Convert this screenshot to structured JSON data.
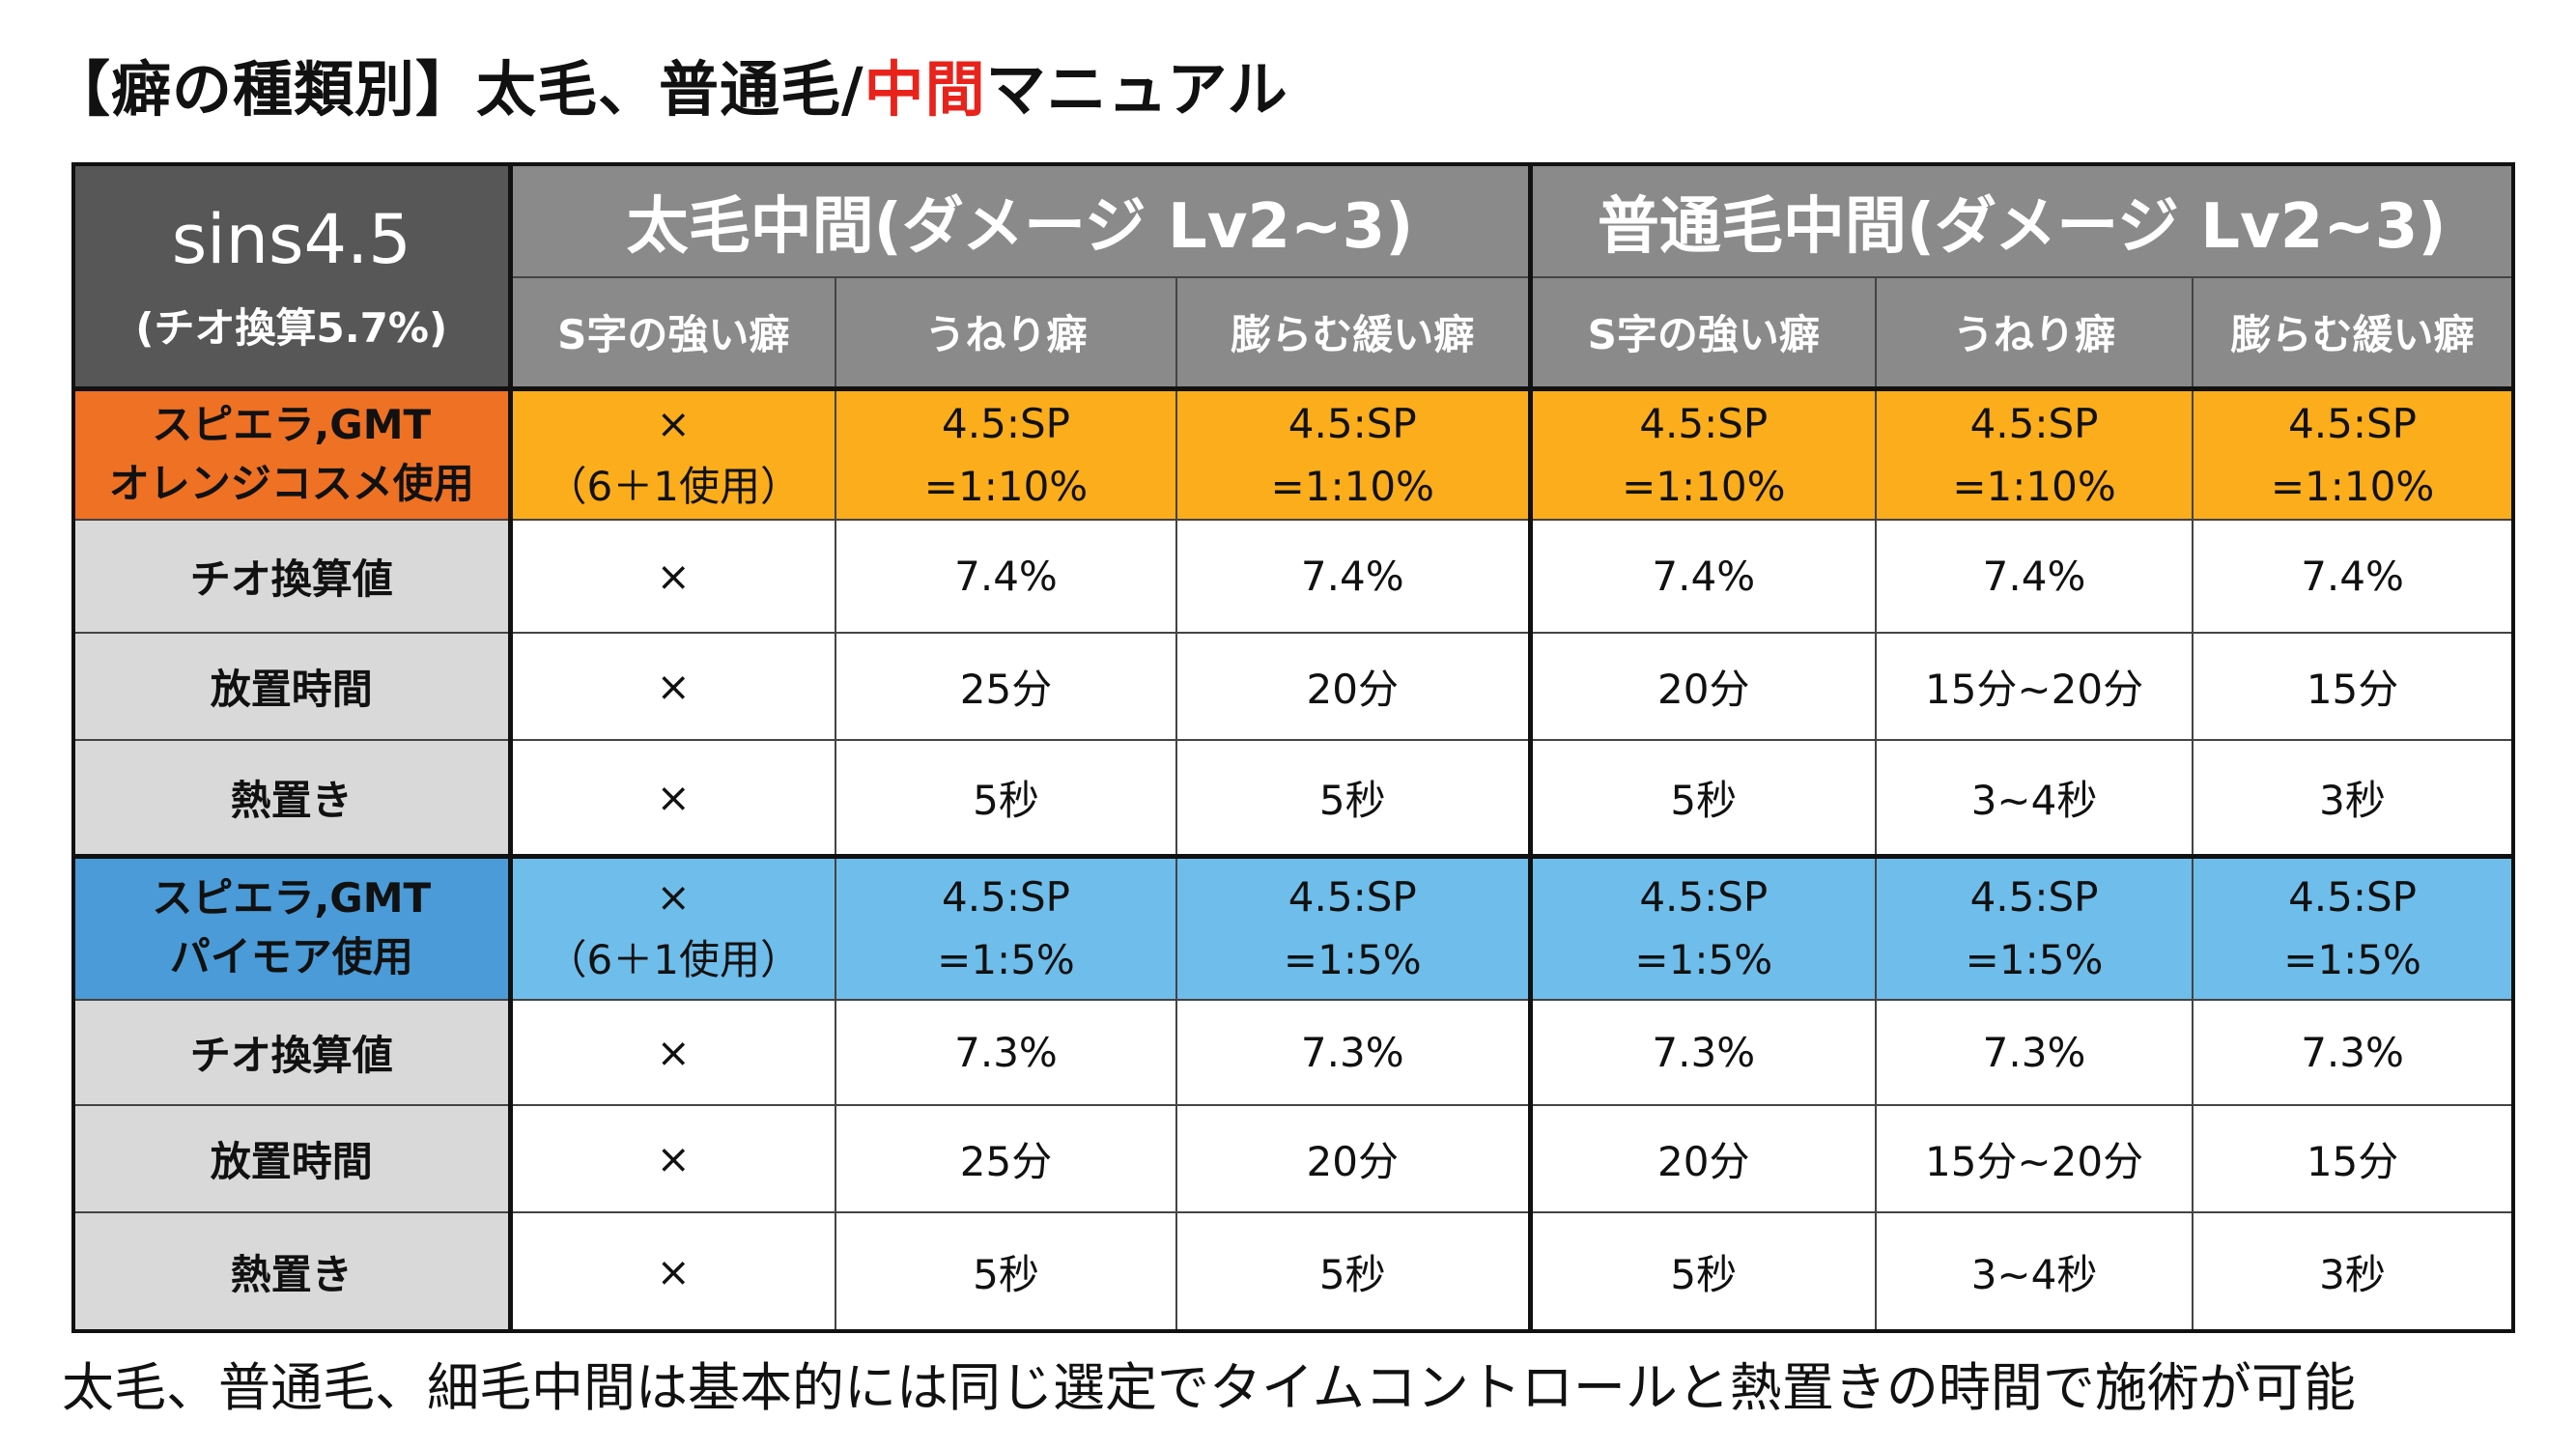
{
  "title": {
    "part1": "【癖の種類別】太毛、普通毛/",
    "highlight": "中間",
    "part2": "マニュアル"
  },
  "table": {
    "corner": {
      "main": "sins4.5",
      "sub": "(チオ換算5.7%)"
    },
    "groups": [
      "太毛中間(ダメージ Lv2~3)",
      "普通毛中間(ダメージ Lv2~3)"
    ],
    "sub_headers": [
      "S字の強い癖",
      "うねり癖",
      "膨らむ緩い癖",
      "S字の強い癖",
      "うねり癖",
      "膨らむ緩い癖"
    ],
    "sections": [
      {
        "label": [
          "スピエラ,GMT",
          "オレンジコスメ使用"
        ],
        "cells": [
          [
            "×",
            "（6＋1使用）"
          ],
          [
            "4.5:SP",
            "=1:10%"
          ],
          [
            "4.5:SP",
            "=1:10%"
          ],
          [
            "4.5:SP",
            "=1:10%"
          ],
          [
            "4.5:SP",
            "=1:10%"
          ],
          [
            "4.5:SP",
            "=1:10%"
          ]
        ],
        "rows": [
          {
            "label": "チオ換算値",
            "values": [
              "×",
              "7.4%",
              "7.4%",
              "7.4%",
              "7.4%",
              "7.4%"
            ]
          },
          {
            "label": "放置時間",
            "values": [
              "×",
              "25分",
              "20分",
              "20分",
              "15分~20分",
              "15分"
            ]
          },
          {
            "label": "熱置き",
            "values": [
              "×",
              "5秒",
              "5秒",
              "5秒",
              "3~4秒",
              "3秒"
            ]
          }
        ]
      },
      {
        "label": [
          "スピエラ,GMT",
          "パイモア使用"
        ],
        "cells": [
          [
            "×",
            "（6＋1使用）"
          ],
          [
            "4.5:SP",
            "=1:5%"
          ],
          [
            "4.5:SP",
            "=1:5%"
          ],
          [
            "4.5:SP",
            "=1:5%"
          ],
          [
            "4.5:SP",
            "=1:5%"
          ],
          [
            "4.5:SP",
            "=1:5%"
          ]
        ],
        "rows": [
          {
            "label": "チオ換算値",
            "values": [
              "×",
              "7.3%",
              "7.3%",
              "7.3%",
              "7.3%",
              "7.3%"
            ]
          },
          {
            "label": "放置時間",
            "values": [
              "×",
              "25分",
              "20分",
              "20分",
              "15分~20分",
              "15分"
            ]
          },
          {
            "label": "熱置き",
            "values": [
              "×",
              "5秒",
              "5秒",
              "5秒",
              "3~4秒",
              "3秒"
            ]
          }
        ]
      }
    ]
  },
  "footer": "太毛、普通毛、細毛中間は基本的には同じ選定でタイムコントロールと熱置きの時間で施術が可能",
  "colors": {
    "title_highlight": "#e8231c",
    "header_dark": "#575757",
    "header_gray": "#8a8a8a",
    "orange_label": "#ee7124",
    "orange_cell": "#fbad1b",
    "blue_label": "#4a9bd7",
    "blue_cell": "#6fbdea",
    "row_label_gray": "#d9d9d9"
  }
}
